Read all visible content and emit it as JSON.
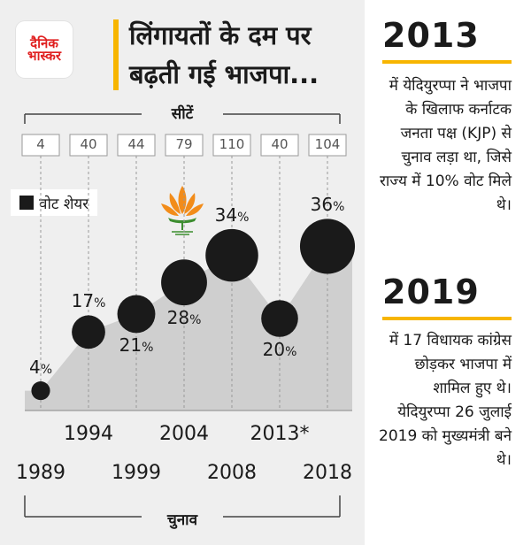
{
  "brand": {
    "logo_text": "दैनिक\nभास्कर"
  },
  "title": "लिंगायतों के दम पर\nबढ़ती गई भाजपा...",
  "legend": {
    "vote_share_label": "वोट शेयर"
  },
  "icons": {
    "party_symbol": "lotus-icon"
  },
  "colors": {
    "accent": "#f7b500",
    "bubble": "#1a1a1a",
    "area": "#cfcfcf",
    "panel_bg": "#efefef"
  },
  "chart_data": {
    "type": "area",
    "seats_label": "सीटें",
    "x_label": "चुनाव",
    "x": [
      "1989",
      "1994",
      "1999",
      "2004",
      "2008",
      "2013*",
      "2018"
    ],
    "seats": [
      4,
      40,
      44,
      79,
      110,
      40,
      104
    ],
    "vote_share_labels": [
      "4%",
      "17%",
      "21%",
      "28%",
      "34%",
      "20%",
      "36%"
    ],
    "series": [
      {
        "name": "वोट शेयर",
        "values": [
          4,
          17,
          21,
          28,
          34,
          20,
          36
        ]
      }
    ]
  },
  "notes": [
    {
      "year": "2013",
      "text": "में येदियुरप्पा ने भाजपा के खिलाफ कर्नाटक जनता पक्ष (KJP) से चुनाव लड़ा था, जिसे राज्य में 10% वोट मिले थे।"
    },
    {
      "year": "2019",
      "text": "में 17 विधायक कांग्रेस छोड़कर भाजपा में शामिल हुए थे। येदियुरप्पा 26 जुलाई 2019 को मुख्यमंत्री बने थे।"
    }
  ]
}
